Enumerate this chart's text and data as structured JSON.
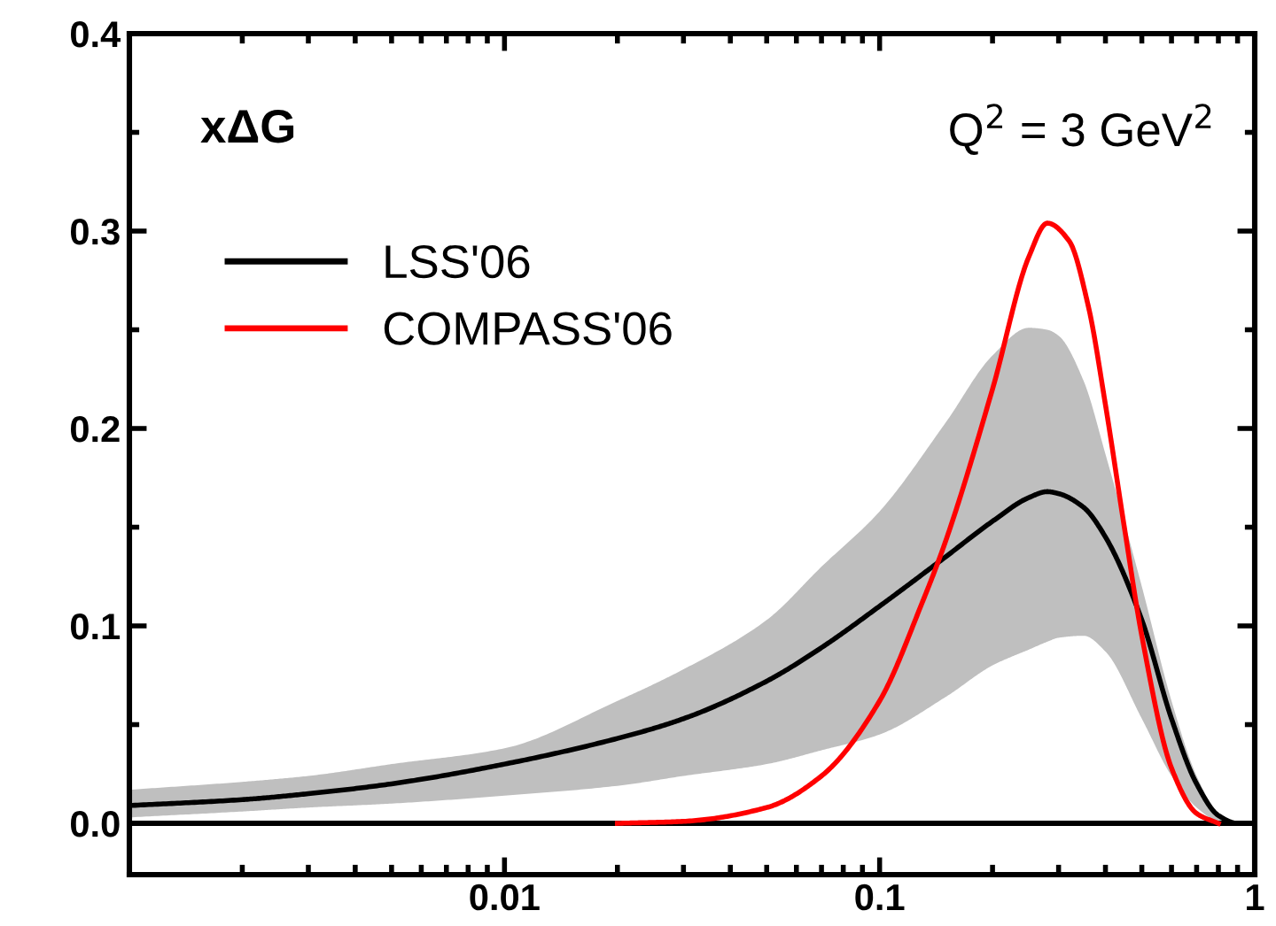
{
  "chart_data": {
    "type": "line",
    "annotations": [
      "xΔG",
      "Q$^{2}$ = 3 GeV$^{2}$"
    ],
    "xlim": [
      0.001,
      1
    ],
    "ylim": [
      -0.026,
      0.4
    ],
    "log": "x",
    "xticks": [
      {
        "value": 0.002,
        "label": null
      },
      {
        "value": 0.003,
        "label": null
      },
      {
        "value": 0.004,
        "label": null
      },
      {
        "value": 0.005,
        "label": null
      },
      {
        "value": 0.006,
        "label": null
      },
      {
        "value": 0.007,
        "label": null
      },
      {
        "value": 0.008,
        "label": null
      },
      {
        "value": 0.009,
        "label": null
      },
      0.01,
      {
        "value": 0.02,
        "label": null
      },
      {
        "value": 0.03,
        "label": null
      },
      {
        "value": 0.04,
        "label": null
      },
      {
        "value": 0.05,
        "label": null
      },
      {
        "value": 0.06,
        "label": null
      },
      {
        "value": 0.07,
        "label": null
      },
      {
        "value": 0.08,
        "label": null
      },
      {
        "value": 0.09,
        "label": null
      },
      0.1,
      {
        "value": 0.2,
        "label": null
      },
      {
        "value": 0.3,
        "label": null
      },
      {
        "value": 0.4,
        "label": null
      },
      {
        "value": 0.5,
        "label": null
      },
      {
        "value": 0.6,
        "label": null
      },
      {
        "value": 0.7,
        "label": null
      },
      {
        "value": 0.8,
        "label": null
      },
      {
        "value": 0.9,
        "label": null
      },
      1
    ],
    "yticks": [
      {
        "value": 0,
        "label": "0.0"
      },
      {
        "value": 0.05,
        "label": null
      },
      0.1,
      {
        "value": 0.15,
        "label": null
      },
      0.2,
      {
        "value": 0.25,
        "label": null
      },
      0.3,
      {
        "value": 0.35,
        "label": null
      },
      0.4
    ],
    "ref_lines": [
      {
        "axis": "y",
        "value": 0,
        "color": "#000000"
      }
    ],
    "legend": "top left",
    "grid": false,
    "line_style": "solid",
    "marker": "none",
    "series": [
      {
        "name": "LSS'06",
        "color": "#000000",
        "x": [
          0.001,
          0.002,
          0.003,
          0.005,
          0.01,
          0.02,
          0.03,
          0.05,
          0.07,
          0.1,
          0.15,
          0.2,
          0.25,
          0.28,
          0.3,
          0.35,
          0.4,
          0.5,
          0.6,
          0.7,
          0.8,
          0.9,
          1
        ],
        "values": [
          0.009,
          0.012,
          0.015,
          0.02,
          0.03,
          0.043,
          0.053,
          0.072,
          0.089,
          0.11,
          0.135,
          0.153,
          0.165,
          0.168,
          0.167,
          0.16,
          0.145,
          0.103,
          0.053,
          0.02,
          0.004,
          0,
          0
        ],
        "upper": [
          0.017,
          0.021,
          0.024,
          0.03,
          0.038,
          0.062,
          0.078,
          0.103,
          0.13,
          0.158,
          0.203,
          0.237,
          0.251,
          0.25,
          0.247,
          0.224,
          0.187,
          0.12,
          0.062,
          0.024,
          0.005,
          0,
          0
        ],
        "lower": [
          0.003,
          0.006,
          0.008,
          0.01,
          0.014,
          0.019,
          0.024,
          0.03,
          0.037,
          0.045,
          0.064,
          0.08,
          0.088,
          0.092,
          0.094,
          0.095,
          0.087,
          0.053,
          0.024,
          0.008,
          0.001,
          0,
          0
        ]
      },
      {
        "name": "COMPASS'06",
        "color": "#ff0000",
        "x": [
          0.02,
          0.03,
          0.05,
          0.07,
          0.1,
          0.13,
          0.15,
          0.2,
          0.25,
          0.28,
          0.32,
          0.36,
          0.4,
          0.45,
          0.5,
          0.6,
          0.7,
          0.8
        ],
        "values": [
          0,
          0.001,
          0.008,
          0.024,
          0.062,
          0.112,
          0.143,
          0.22,
          0.287,
          0.304,
          0.295,
          0.262,
          0.212,
          0.149,
          0.095,
          0.028,
          0.005,
          0
        ]
      }
    ]
  }
}
